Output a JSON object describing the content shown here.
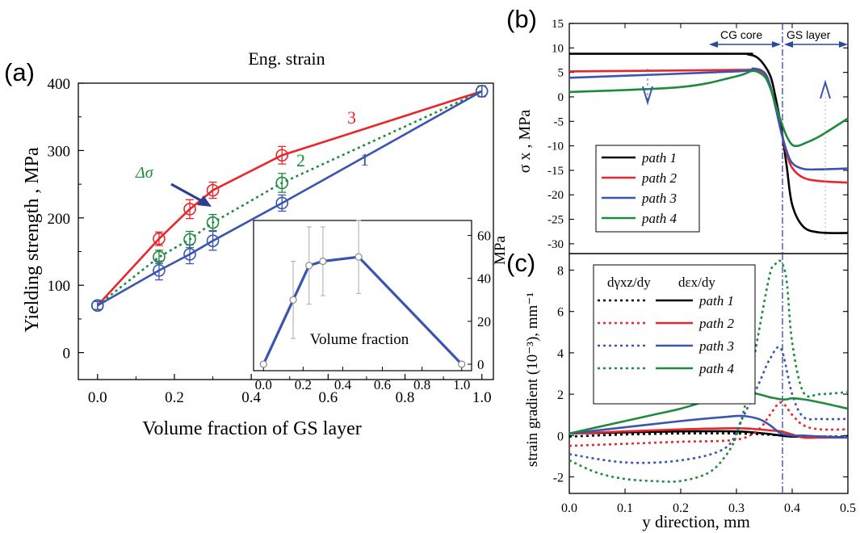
{
  "chart_data": [
    {
      "panel": "(a)",
      "type": "line",
      "title": "Eng. strain",
      "xlabel": "Volume fraction of GS layer",
      "ylabel": "Yielding strength , MPa",
      "xlim": [
        -0.05,
        1.03
      ],
      "ylim": [
        -40,
        400
      ],
      "xticks": [
        "0.0",
        "0.2",
        "0.4",
        "0.6",
        "0.8",
        "1.0"
      ],
      "yticks": [
        "0",
        "100",
        "200",
        "300",
        "400"
      ],
      "annotation": "Δσ",
      "series": [
        {
          "name": "3",
          "color": "#e8262b",
          "style": "solid",
          "x": [
            0.0,
            0.16,
            0.24,
            0.3,
            0.48,
            1.0
          ],
          "values": [
            70,
            169,
            213,
            241,
            293,
            388
          ],
          "err": [
            6,
            10,
            14,
            12,
            13,
            8
          ]
        },
        {
          "name": "2",
          "color": "#1d8a3c",
          "style": "dotted",
          "x": [
            0.0,
            0.16,
            0.24,
            0.3,
            0.48,
            1.0
          ],
          "values": [
            70,
            142,
            168,
            193,
            252,
            388
          ],
          "err": [
            6,
            10,
            12,
            12,
            14,
            8
          ]
        },
        {
          "name": "1",
          "color": "#3a55b0",
          "style": "solid",
          "x": [
            0.0,
            0.16,
            0.24,
            0.3,
            0.48,
            1.0
          ],
          "values": [
            70,
            122,
            146,
            166,
            222,
            388
          ],
          "err": [
            6,
            14,
            14,
            14,
            12,
            8
          ]
        }
      ],
      "inset": {
        "type": "line",
        "xlabel": "Volume fraction",
        "ylabel": "MPa",
        "xlim": [
          -0.05,
          1.05
        ],
        "ylim": [
          -3,
          67
        ],
        "xticks": [
          "0.0",
          "0.2",
          "0.4",
          "0.6",
          "0.8",
          "1.0"
        ],
        "yticks": [
          "0",
          "20",
          "40",
          "60"
        ],
        "color": "#3a55b0",
        "x": [
          0.0,
          0.15,
          0.23,
          0.3,
          0.48,
          1.0
        ],
        "values": [
          0,
          30,
          46,
          48,
          50,
          0
        ],
        "err": [
          0,
          18,
          18,
          16,
          17,
          0
        ]
      }
    },
    {
      "panel": "(b)",
      "type": "line",
      "ylabel": "σ x , MPa",
      "xlim": [
        0,
        0.5
      ],
      "ylim": [
        -32,
        15
      ],
      "yticks": [
        "15",
        "10",
        "5",
        "0",
        "-5",
        "-10",
        "-15",
        "-20",
        "-25",
        "-30"
      ],
      "annotations": [
        "CG core",
        "GS layer"
      ],
      "legend": "bottom-left",
      "series": [
        {
          "name": "path 1",
          "color": "#000000",
          "x": [
            0,
            0.3,
            0.32,
            0.34,
            0.36,
            0.37,
            0.38,
            0.39,
            0.4,
            0.42,
            0.45,
            0.5
          ],
          "values": [
            8.8,
            8.8,
            8.7,
            7.8,
            4.5,
            0,
            -6,
            -14,
            -22,
            -26.5,
            -27.7,
            -27.8
          ]
        },
        {
          "name": "path 2",
          "color": "#e8262b",
          "x": [
            0,
            0.3,
            0.33,
            0.35,
            0.36,
            0.37,
            0.38,
            0.39,
            0.4,
            0.42,
            0.45,
            0.5
          ],
          "values": [
            5.2,
            5.5,
            5.6,
            4.8,
            2.5,
            -2,
            -7,
            -11.5,
            -14.5,
            -16.5,
            -17.2,
            -17.5
          ]
        },
        {
          "name": "path 3",
          "color": "#3a55b0",
          "x": [
            0,
            0.3,
            0.33,
            0.35,
            0.36,
            0.37,
            0.38,
            0.39,
            0.4,
            0.42,
            0.45,
            0.5
          ],
          "values": [
            3.9,
            5.2,
            5.8,
            5.0,
            2.5,
            -2,
            -7,
            -11,
            -13.5,
            -14.7,
            -14.8,
            -14.6
          ]
        },
        {
          "name": "path 4",
          "color": "#1d8a3c",
          "x": [
            0,
            0.2,
            0.3,
            0.33,
            0.35,
            0.36,
            0.37,
            0.38,
            0.39,
            0.4,
            0.41,
            0.42,
            0.45,
            0.5
          ],
          "values": [
            1.0,
            2.0,
            4.2,
            5.3,
            4.2,
            2,
            -1.5,
            -5,
            -8,
            -9.8,
            -10,
            -9.6,
            -8,
            -4.4
          ]
        }
      ]
    },
    {
      "panel": "(c)",
      "type": "line",
      "xlabel": "y direction, mm",
      "ylabel": "strain gradient (10⁻³), mm⁻¹",
      "xlim": [
        0,
        0.5
      ],
      "ylim": [
        -2.8,
        8.8
      ],
      "xticks": [
        "0.0",
        "0.1",
        "0.2",
        "0.3",
        "0.4",
        "0.5"
      ],
      "yticks": [
        "8",
        "6",
        "4",
        "2",
        "0",
        "-2"
      ],
      "legend_headers": [
        "dγxz/dy",
        "dεx/dy"
      ],
      "series": [
        {
          "name": "path 1",
          "color": "#000000",
          "x": [
            0,
            0.1,
            0.2,
            0.3,
            0.35,
            0.38,
            0.4,
            0.45,
            0.5
          ],
          "dgamma": [
            -0.05,
            0.05,
            0.1,
            0.1,
            0.05,
            0.0,
            -0.05,
            -0.05,
            -0.05
          ],
          "deps": [
            0.1,
            0.15,
            0.2,
            0.2,
            0.1,
            0.0,
            -0.05,
            -0.05,
            -0.1
          ]
        },
        {
          "name": "path 2",
          "color": "#e8262b",
          "x": [
            0,
            0.1,
            0.2,
            0.3,
            0.34,
            0.36,
            0.38,
            0.4,
            0.42,
            0.45,
            0.5
          ],
          "dgamma": [
            -0.5,
            -0.4,
            -0.3,
            -0.2,
            0.3,
            1.0,
            1.6,
            1.0,
            0.5,
            0.3,
            0.3
          ],
          "deps": [
            0.1,
            0.2,
            0.3,
            0.35,
            0.3,
            0.25,
            0.2,
            0.05,
            -0.1,
            -0.1,
            -0.1
          ]
        },
        {
          "name": "path 3",
          "color": "#3a55b0",
          "x": [
            0,
            0.1,
            0.2,
            0.28,
            0.31,
            0.34,
            0.36,
            0.38,
            0.4,
            0.42,
            0.45,
            0.5
          ],
          "dgamma": [
            -0.9,
            -1.3,
            -1.2,
            -0.6,
            0.8,
            2.5,
            3.7,
            4.2,
            2.0,
            0.9,
            0.8,
            0.8
          ],
          "deps": [
            0.1,
            0.4,
            0.7,
            0.9,
            0.95,
            0.8,
            0.5,
            0.1,
            0.0,
            0.0,
            -0.05,
            -0.1
          ]
        },
        {
          "name": "path 4",
          "color": "#1d8a3c",
          "x": [
            0,
            0.05,
            0.1,
            0.15,
            0.2,
            0.25,
            0.28,
            0.3,
            0.32,
            0.34,
            0.36,
            0.37,
            0.38,
            0.39,
            0.4,
            0.42,
            0.45,
            0.5
          ],
          "dgamma": [
            -1.2,
            -1.8,
            -2.1,
            -2.2,
            -2.2,
            -1.8,
            -1.0,
            0.0,
            2.0,
            5.0,
            7.8,
            8.3,
            8.4,
            7.5,
            4.5,
            2.1,
            2.0,
            2.1
          ],
          "deps": [
            0.1,
            0.4,
            0.7,
            1.0,
            1.3,
            1.7,
            1.9,
            2.0,
            2.1,
            2.0,
            1.85,
            1.8,
            1.75,
            1.75,
            1.8,
            1.75,
            1.6,
            1.3
          ]
        }
      ]
    }
  ],
  "panel_labels": {
    "a": "(a)",
    "b": "(b)",
    "c": "(c)"
  },
  "curve_labels": {
    "s3": "3",
    "s2": "2",
    "s1": "1"
  }
}
